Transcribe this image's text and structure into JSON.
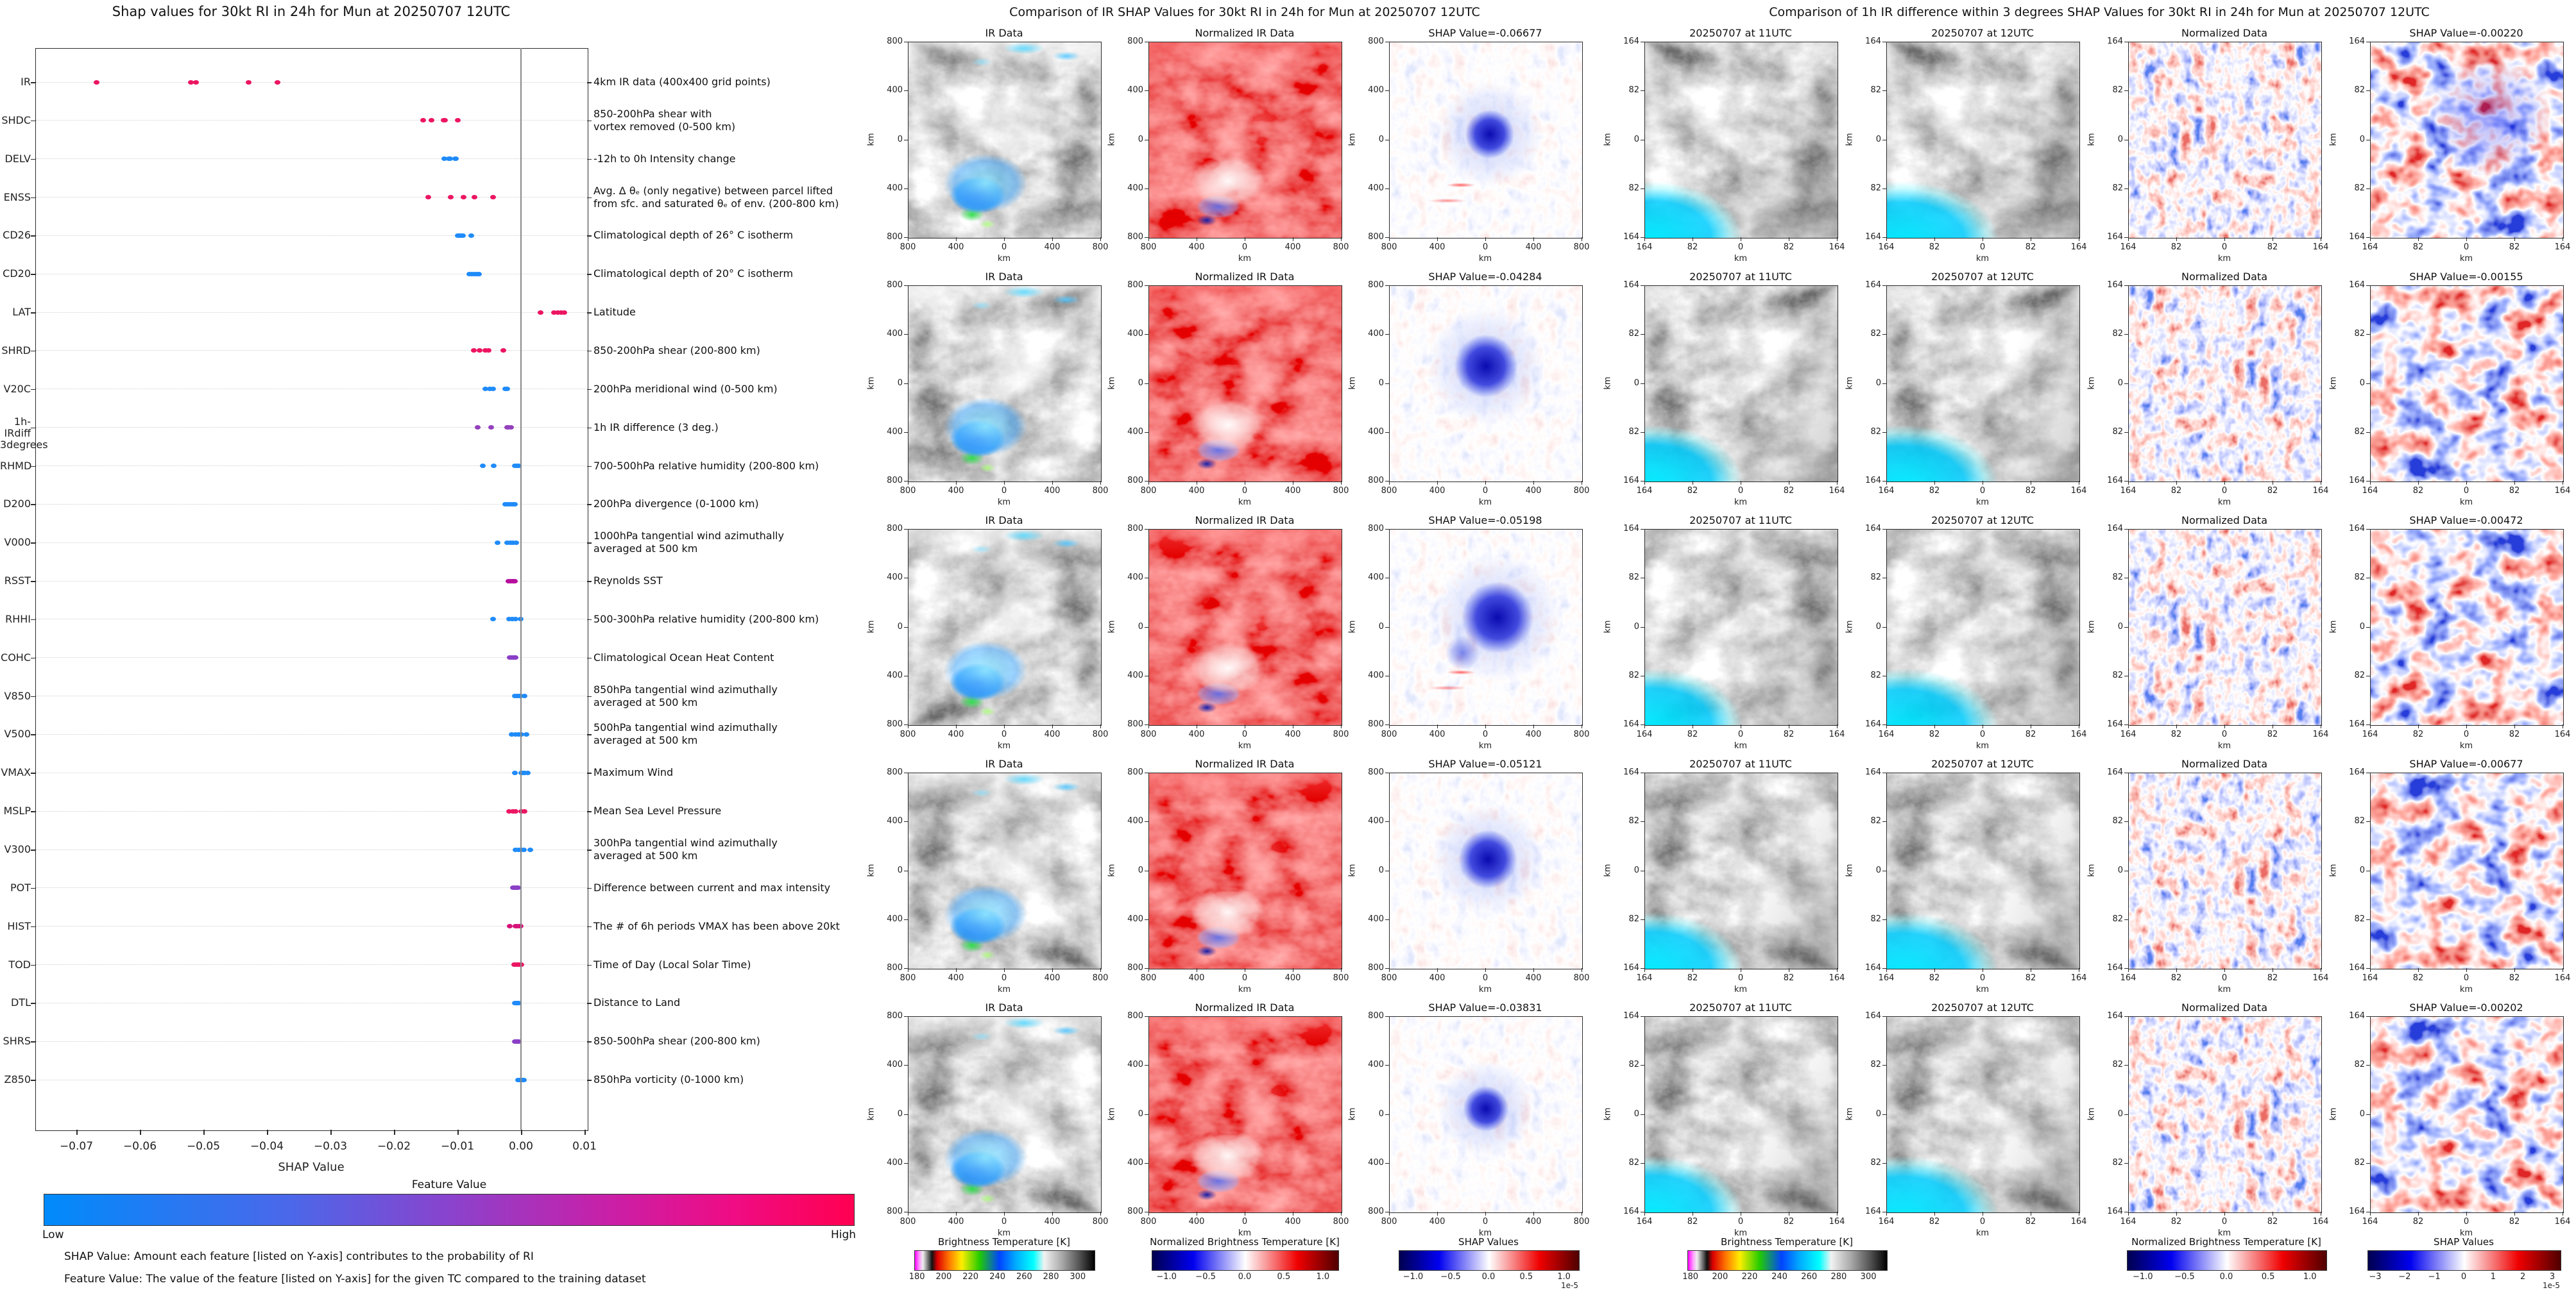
{
  "chart_data": [
    {
      "type": "scatter",
      "title": "Shap values for 30kt RI in 24h for Mun at 20250707 12UTC",
      "xlabel": "SHAP Value",
      "xlim": [
        -0.0765,
        0.0105
      ],
      "x_ticks": [
        -0.07,
        -0.06,
        -0.05,
        -0.04,
        -0.03,
        -0.02,
        -0.01,
        0.0,
        0.01
      ],
      "grid": "dotted-horizontal",
      "zero_line": 0.0,
      "features": [
        {
          "name": "IR",
          "description": "4km IR data (400x400 grid points)",
          "color": "#ec1562",
          "values": [
            -0.06677,
            -0.05198,
            -0.05121,
            -0.04284,
            -0.03831
          ]
        },
        {
          "name": "SHDC",
          "description": "850-200hPa shear with\nvortex removed (0-500 km)",
          "color": "#ec1562",
          "values": [
            -0.0154,
            -0.0141,
            -0.0122,
            -0.012,
            -0.0099
          ]
        },
        {
          "name": "DELV",
          "description": "-12h to 0h Intensity change",
          "color": "#1f8bf9",
          "values": [
            -0.0121,
            -0.0114,
            -0.0112,
            -0.0104,
            -0.0103
          ]
        },
        {
          "name": "ENSS",
          "description": "Avg. Δ θₑ (only negative) between parcel lifted\nfrom sfc. and saturated θₑ of env. (200-800 km)",
          "color": "#ec1562",
          "values": [
            -0.0146,
            -0.0111,
            -0.009,
            -0.0073,
            -0.0044
          ]
        },
        {
          "name": "CD26",
          "description": "Climatological depth of 26° C isotherm",
          "color": "#1f8bf9",
          "values": [
            -0.01,
            -0.0097,
            -0.0094,
            -0.0091,
            -0.0078
          ]
        },
        {
          "name": "CD20",
          "description": "Climatological depth of 20° C isotherm",
          "color": "#1f8bf9",
          "values": [
            -0.0081,
            -0.0077,
            -0.0073,
            -0.0069,
            -0.0066
          ]
        },
        {
          "name": "LAT",
          "description": "Latitude",
          "color": "#ec1562",
          "values": [
            0.0031,
            0.0052,
            0.0058,
            0.0063,
            0.0068
          ]
        },
        {
          "name": "SHRD",
          "description": "850-200hPa shear (200-800 km)",
          "color": "#ec1562",
          "values": [
            -0.0074,
            -0.0065,
            -0.0056,
            -0.0051,
            -0.0028
          ]
        },
        {
          "name": "V20C",
          "description": "200hPa meridional wind (0-500 km)",
          "color": "#1f8bf9",
          "values": [
            -0.0056,
            -0.0049,
            -0.0044,
            -0.0025,
            -0.0022
          ]
        },
        {
          "name": "1h-IRdiff\n3degrees",
          "description": "1h IR difference (3 deg.)",
          "color": "#9440bd",
          "values": [
            -0.00677,
            -0.00472,
            -0.0022,
            -0.00202,
            -0.00155
          ]
        },
        {
          "name": "RHMD",
          "description": "700-500hPa relative humidity (200-800 km)",
          "color": "#1f8bf9",
          "values": [
            -0.006,
            -0.0043,
            -0.001,
            -0.0007,
            -0.0004
          ]
        },
        {
          "name": "D200",
          "description": "200hPa divergence (0-1000 km)",
          "color": "#1f8bf9",
          "values": [
            -0.0025,
            -0.0021,
            -0.0017,
            -0.0013,
            -0.001
          ]
        },
        {
          "name": "V000",
          "description": "1000hPa tangential wind azimuthally\naveraged at 500 km",
          "color": "#1f8bf9",
          "values": [
            -0.0037,
            -0.0022,
            -0.0017,
            -0.0013,
            -0.0008
          ]
        },
        {
          "name": "RSST",
          "description": "Reynolds SST",
          "color": "#b60f9e",
          "values": [
            -0.002,
            -0.0017,
            -0.0014,
            -0.0012,
            -0.001
          ]
        },
        {
          "name": "RHHI",
          "description": "500-300hPa relative humidity (200-800 km)",
          "color": "#1f8bf9",
          "values": [
            -0.0044,
            -0.0019,
            -0.0014,
            -0.0009,
            -0.0001
          ]
        },
        {
          "name": "COHC",
          "description": "Climatological Ocean Heat Content",
          "color": "#8a3fc6",
          "values": [
            -0.0018,
            -0.0015,
            -0.0012,
            -0.001,
            -0.0009
          ]
        },
        {
          "name": "V850",
          "description": "850hPa tangential wind azimuthally\naveraged at 500 km",
          "color": "#1f8bf9",
          "values": [
            -0.001,
            -0.0006,
            -0.0003,
            -0.0001,
            0.0006
          ]
        },
        {
          "name": "V500",
          "description": "500hPa tangential wind azimuthally\naveraged at 500 km",
          "color": "#1f8bf9",
          "values": [
            -0.0015,
            -0.0009,
            -0.0004,
            0.0001,
            0.0009
          ]
        },
        {
          "name": "VMAX",
          "description": "Maximum Wind",
          "color": "#1f8bf9",
          "values": [
            -0.001,
            0.0,
            0.0003,
            0.0006,
            0.0011
          ]
        },
        {
          "name": "MSLP",
          "description": "Mean Sea Level Pressure",
          "color": "#ec1562",
          "values": [
            -0.0019,
            -0.0013,
            -0.0009,
            0.0,
            0.0006
          ]
        },
        {
          "name": "V300",
          "description": "300hPa tangential wind azimuthally\naveraged at 500 km",
          "color": "#1f8bf9",
          "values": [
            -0.0009,
            -0.0004,
            0.0001,
            0.0005,
            0.0015
          ]
        },
        {
          "name": "POT",
          "description": "Difference between current and max intensity",
          "color": "#8a3fc6",
          "values": [
            -0.0013,
            -0.0011,
            -0.0009,
            -0.0007,
            -0.0005
          ]
        },
        {
          "name": "HIST",
          "description": "The # of 6h periods VMAX has been above 20kt",
          "color": "#d61279",
          "values": [
            -0.0018,
            -0.0009,
            -0.0007,
            -0.0003,
            -0.0001
          ]
        },
        {
          "name": "TOD",
          "description": "Time of Day (Local Solar Time)",
          "color": "#ec1562",
          "values": [
            -0.0011,
            -0.0008,
            -0.0005,
            -0.0002,
            0.0001
          ]
        },
        {
          "name": "DTL",
          "description": "Distance to Land",
          "color": "#1f8bf9",
          "values": [
            -0.001,
            -0.0008,
            -0.0007,
            -0.0005,
            -0.0004
          ]
        },
        {
          "name": "SHRS",
          "description": "850-500hPa shear (200-800 km)",
          "color": "#8a3fc6",
          "values": [
            -0.001,
            -0.0008,
            -0.0006,
            -0.0005,
            -0.0004
          ]
        },
        {
          "name": "Z850",
          "description": "850hPa vorticity (0-1000 km)",
          "color": "#1f8bf9",
          "values": [
            -0.0005,
            -0.0002,
            0.0,
            0.0003,
            0.0005
          ]
        }
      ],
      "colorbar": {
        "title": "Feature Value",
        "low": "Low",
        "high": "High",
        "colors": [
          "#008bfb",
          "#ff0051"
        ]
      },
      "caption": [
        "SHAP Value: Amount each feature [listed on Y-axis] contributes to the probability of RI",
        "Feature Value: The value of the feature [listed on Y-axis] for the given TC compared to the training dataset"
      ]
    },
    {
      "type": "heatmap",
      "title": "Comparison of IR SHAP Values for 30kt RI in 24h for Mun at 20250707 12UTC",
      "columns": [
        "IR Data",
        "Normalized IR Data"
      ],
      "rows": [
        {
          "shap_value": -0.06677,
          "label": "SHAP Value=-0.06677"
        },
        {
          "shap_value": -0.04284,
          "label": "SHAP Value=-0.04284"
        },
        {
          "shap_value": -0.05198,
          "label": "SHAP Value=-0.05198"
        },
        {
          "shap_value": -0.05121,
          "label": "SHAP Value=-0.05121"
        },
        {
          "shap_value": -0.03831,
          "label": "SHAP Value=-0.03831"
        }
      ],
      "y_ticks": [
        "800",
        "400",
        "0",
        "400",
        "800"
      ],
      "x_ticks": [
        "800",
        "400",
        "0",
        "400",
        "800"
      ],
      "axis_unit": "km",
      "colorbars": [
        {
          "title": "Brightness Temperature [K]",
          "ticks": [
            "180",
            "200",
            "220",
            "240",
            "260",
            "280",
            "300"
          ],
          "style": "bt"
        },
        {
          "title": "Normalized Brightness Temperature [K]",
          "ticks": [
            "-1.0",
            "-0.5",
            "0.0",
            "0.5",
            "1.0"
          ],
          "style": "seismic"
        },
        {
          "title": "SHAP Values",
          "ticks": [
            "-1.0",
            "-0.5",
            "0.0",
            "0.5",
            "1.0"
          ],
          "style": "seismic",
          "exp": "1e-5"
        }
      ]
    },
    {
      "type": "heatmap",
      "title": "Comparison of 1h IR difference within 3 degrees SHAP Values for 30kt RI in 24h for Mun at 20250707 12UTC",
      "columns": [
        "20250707 at 11UTC",
        "20250707 at 12UTC",
        "Normalized Data"
      ],
      "rows": [
        {
          "shap_value": -0.0022,
          "label": "SHAP Value=-0.00220"
        },
        {
          "shap_value": -0.00155,
          "label": "SHAP Value=-0.00155"
        },
        {
          "shap_value": -0.00472,
          "label": "SHAP Value=-0.00472"
        },
        {
          "shap_value": -0.00677,
          "label": "SHAP Value=-0.00677"
        },
        {
          "shap_value": -0.00202,
          "label": "SHAP Value=-0.00202"
        }
      ],
      "y_ticks": [
        "164",
        "82",
        "0",
        "82",
        "164"
      ],
      "x_ticks": [
        "164",
        "82",
        "0",
        "82",
        "164"
      ],
      "axis_unit": "km",
      "colorbars": [
        {
          "title": "Brightness Temperature [K]",
          "ticks": [
            "180",
            "200",
            "220",
            "240",
            "260",
            "280",
            "300"
          ],
          "style": "bt"
        },
        {
          "title": "Normalized Brightness Temperature [K]",
          "ticks": [
            "-1.0",
            "-0.5",
            "0.0",
            "0.5",
            "1.0"
          ],
          "style": "seismic"
        },
        {
          "title": "SHAP Values",
          "ticks": [
            "-3",
            "-2",
            "-1",
            "0",
            "1",
            "2",
            "3"
          ],
          "style": "seismic",
          "exp": "1e-5"
        }
      ]
    }
  ]
}
